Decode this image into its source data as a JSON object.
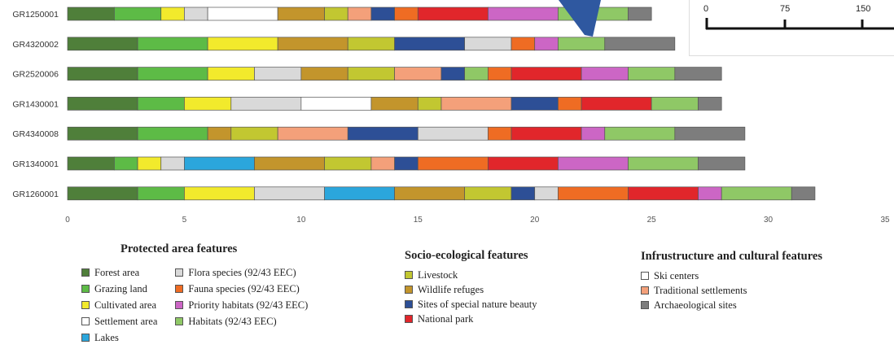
{
  "chart_data": {
    "type": "stacked-bar",
    "orientation": "horizontal",
    "categories": [
      "GR1250001",
      "GR4320002",
      "GR2520006",
      "GR1430001",
      "GR4340008",
      "GR1340001",
      "GR1260001"
    ],
    "xlim": [
      0,
      35
    ],
    "xticks": [
      0,
      5,
      10,
      15,
      20,
      25,
      30,
      35
    ],
    "grid": false,
    "feature_colors": {
      "Forest area": "#4f7f3a",
      "Grazing land": "#5dbb46",
      "Cultivated area": "#f2ea2c",
      "Settlement area": "#ffffff",
      "Lakes": "#2ba6dc",
      "Flora species (92/43 EEC)": "#d9d9d9",
      "Fauna species (92/43 EEC)": "#ef6c23",
      "Priority habitats (92/43 EEC)": "#cc66c5",
      "Habitats (92/43 EEC)": "#8fc866",
      "Livestock": "#c2c731",
      "Wildlife refuges": "#c3952c",
      "Sites of special nature beauty": "#2d4f96",
      "National park": "#e1262b",
      "Ski centers": "#ffffff",
      "Traditional settlements": "#f4a07a",
      "Archaeological sites": "#7d7d7d"
    },
    "bars": [
      {
        "category": "GR1250001",
        "segments": [
          {
            "feature": "Forest area",
            "value": 2
          },
          {
            "feature": "Grazing land",
            "value": 2
          },
          {
            "feature": "Cultivated area",
            "value": 1
          },
          {
            "feature": "Flora species (92/43 EEC)",
            "value": 1
          },
          {
            "feature": "Ski centers",
            "value": 3
          },
          {
            "feature": "Wildlife refuges",
            "value": 2
          },
          {
            "feature": "Livestock",
            "value": 1
          },
          {
            "feature": "Traditional settlements",
            "value": 1
          },
          {
            "feature": "Sites of special nature beauty",
            "value": 1
          },
          {
            "feature": "Fauna species (92/43 EEC)",
            "value": 1
          },
          {
            "feature": "National park",
            "value": 3
          },
          {
            "feature": "Priority habitats (92/43 EEC)",
            "value": 3
          },
          {
            "feature": "Habitats (92/43 EEC)",
            "value": 3
          },
          {
            "feature": "Archaeological sites",
            "value": 1
          }
        ]
      },
      {
        "category": "GR4320002",
        "segments": [
          {
            "feature": "Forest area",
            "value": 3
          },
          {
            "feature": "Grazing land",
            "value": 3
          },
          {
            "feature": "Cultivated area",
            "value": 3
          },
          {
            "feature": "Wildlife refuges",
            "value": 3
          },
          {
            "feature": "Livestock",
            "value": 2
          },
          {
            "feature": "Sites of special nature beauty",
            "value": 3
          },
          {
            "feature": "Flora species (92/43 EEC)",
            "value": 2
          },
          {
            "feature": "Fauna species (92/43 EEC)",
            "value": 1
          },
          {
            "feature": "Priority habitats (92/43 EEC)",
            "value": 1
          },
          {
            "feature": "Habitats (92/43 EEC)",
            "value": 2
          },
          {
            "feature": "Archaeological sites",
            "value": 3
          }
        ]
      },
      {
        "category": "GR2520006",
        "segments": [
          {
            "feature": "Forest area",
            "value": 3
          },
          {
            "feature": "Grazing land",
            "value": 3
          },
          {
            "feature": "Cultivated area",
            "value": 2
          },
          {
            "feature": "Flora species (92/43 EEC)",
            "value": 2
          },
          {
            "feature": "Wildlife refuges",
            "value": 2
          },
          {
            "feature": "Livestock",
            "value": 2
          },
          {
            "feature": "Traditional settlements",
            "value": 2
          },
          {
            "feature": "Sites of special nature beauty",
            "value": 1
          },
          {
            "feature": "Habitats (92/43 EEC)",
            "value": 1
          },
          {
            "feature": "Fauna species (92/43 EEC)",
            "value": 1
          },
          {
            "feature": "National park",
            "value": 3
          },
          {
            "feature": "Priority habitats (92/43 EEC)",
            "value": 2
          },
          {
            "feature": "Habitats (92/43 EEC)",
            "value": 2
          },
          {
            "feature": "Archaeological sites",
            "value": 2
          }
        ]
      },
      {
        "category": "GR1430001",
        "segments": [
          {
            "feature": "Forest area",
            "value": 3
          },
          {
            "feature": "Grazing land",
            "value": 2
          },
          {
            "feature": "Cultivated area",
            "value": 2
          },
          {
            "feature": "Flora species (92/43 EEC)",
            "value": 3
          },
          {
            "feature": "Ski centers",
            "value": 3
          },
          {
            "feature": "Wildlife refuges",
            "value": 2
          },
          {
            "feature": "Livestock",
            "value": 1
          },
          {
            "feature": "Traditional settlements",
            "value": 3
          },
          {
            "feature": "Sites of special nature beauty",
            "value": 2
          },
          {
            "feature": "Fauna species (92/43 EEC)",
            "value": 1
          },
          {
            "feature": "National park",
            "value": 3
          },
          {
            "feature": "Habitats (92/43 EEC)",
            "value": 2
          },
          {
            "feature": "Archaeological sites",
            "value": 1
          }
        ]
      },
      {
        "category": "GR4340008",
        "segments": [
          {
            "feature": "Forest area",
            "value": 3
          },
          {
            "feature": "Grazing land",
            "value": 3
          },
          {
            "feature": "Wildlife refuges",
            "value": 1
          },
          {
            "feature": "Livestock",
            "value": 2
          },
          {
            "feature": "Traditional settlements",
            "value": 3
          },
          {
            "feature": "Sites of special nature beauty",
            "value": 3
          },
          {
            "feature": "Flora species (92/43 EEC)",
            "value": 3
          },
          {
            "feature": "Fauna species (92/43 EEC)",
            "value": 1
          },
          {
            "feature": "National park",
            "value": 3
          },
          {
            "feature": "Priority habitats (92/43 EEC)",
            "value": 1
          },
          {
            "feature": "Habitats (92/43 EEC)",
            "value": 3
          },
          {
            "feature": "Archaeological sites",
            "value": 3
          }
        ]
      },
      {
        "category": "GR1340001",
        "segments": [
          {
            "feature": "Forest area",
            "value": 2
          },
          {
            "feature": "Grazing land",
            "value": 1
          },
          {
            "feature": "Cultivated area",
            "value": 1
          },
          {
            "feature": "Flora species (92/43 EEC)",
            "value": 1
          },
          {
            "feature": "Lakes",
            "value": 3
          },
          {
            "feature": "Wildlife refuges",
            "value": 3
          },
          {
            "feature": "Livestock",
            "value": 2
          },
          {
            "feature": "Traditional settlements",
            "value": 1
          },
          {
            "feature": "Sites of special nature beauty",
            "value": 1
          },
          {
            "feature": "Fauna species (92/43 EEC)",
            "value": 3
          },
          {
            "feature": "National park",
            "value": 3
          },
          {
            "feature": "Priority habitats (92/43 EEC)",
            "value": 3
          },
          {
            "feature": "Habitats (92/43 EEC)",
            "value": 3
          },
          {
            "feature": "Archaeological sites",
            "value": 2
          }
        ]
      },
      {
        "category": "GR1260001",
        "segments": [
          {
            "feature": "Forest area",
            "value": 3
          },
          {
            "feature": "Grazing land",
            "value": 2
          },
          {
            "feature": "Cultivated area",
            "value": 3
          },
          {
            "feature": "Flora species (92/43 EEC)",
            "value": 3
          },
          {
            "feature": "Lakes",
            "value": 3
          },
          {
            "feature": "Wildlife refuges",
            "value": 3
          },
          {
            "feature": "Livestock",
            "value": 2
          },
          {
            "feature": "Sites of special nature beauty",
            "value": 1
          },
          {
            "feature": "Flora species (92/43 EEC)",
            "value": 1
          },
          {
            "feature": "Fauna species (92/43 EEC)",
            "value": 3
          },
          {
            "feature": "National park",
            "value": 3
          },
          {
            "feature": "Priority habitats (92/43 EEC)",
            "value": 1
          },
          {
            "feature": "Habitats (92/43 EEC)",
            "value": 3
          },
          {
            "feature": "Archaeological sites",
            "value": 1
          }
        ]
      }
    ]
  },
  "legend": {
    "placement": "bottom",
    "groups": [
      {
        "title": "Protected area features",
        "columns": [
          [
            {
              "label": "Forest area",
              "color": "#4f7f3a"
            },
            {
              "label": "Grazing land",
              "color": "#5dbb46"
            },
            {
              "label": "Cultivated area",
              "color": "#f2ea2c"
            },
            {
              "label": "Settlement area",
              "color": "#ffffff"
            },
            {
              "label": "Lakes",
              "color": "#2ba6dc"
            }
          ],
          [
            {
              "label": "Flora species (92/43 EEC)",
              "color": "#d9d9d9"
            },
            {
              "label": "Fauna species (92/43 EEC)",
              "color": "#ef6c23"
            },
            {
              "label": "Priority habitats (92/43 EEC)",
              "color": "#cc66c5"
            },
            {
              "label": "Habitats (92/43 EEC)",
              "color": "#8fc866"
            }
          ]
        ]
      },
      {
        "title": "Socio-ecological features",
        "columns": [
          [
            {
              "label": "Livestock",
              "color": "#c2c731"
            },
            {
              "label": "Wildlife refuges",
              "color": "#c3952c"
            },
            {
              "label": "Sites of special nature beauty",
              "color": "#2d4f96"
            },
            {
              "label": "National park",
              "color": "#e1262b"
            }
          ]
        ]
      },
      {
        "title": "Infrustructure and cultural features",
        "columns": [
          [
            {
              "label": "Ski centers",
              "color": "#ffffff"
            },
            {
              "label": "Traditional settlements",
              "color": "#f4a07a"
            },
            {
              "label": "Archaeological sites",
              "color": "#7d7d7d"
            }
          ]
        ]
      }
    ]
  },
  "scale_bar": {
    "labels": [
      "0",
      "75",
      "150"
    ]
  },
  "overlay": {
    "arrow_color": "#2f58a0"
  }
}
